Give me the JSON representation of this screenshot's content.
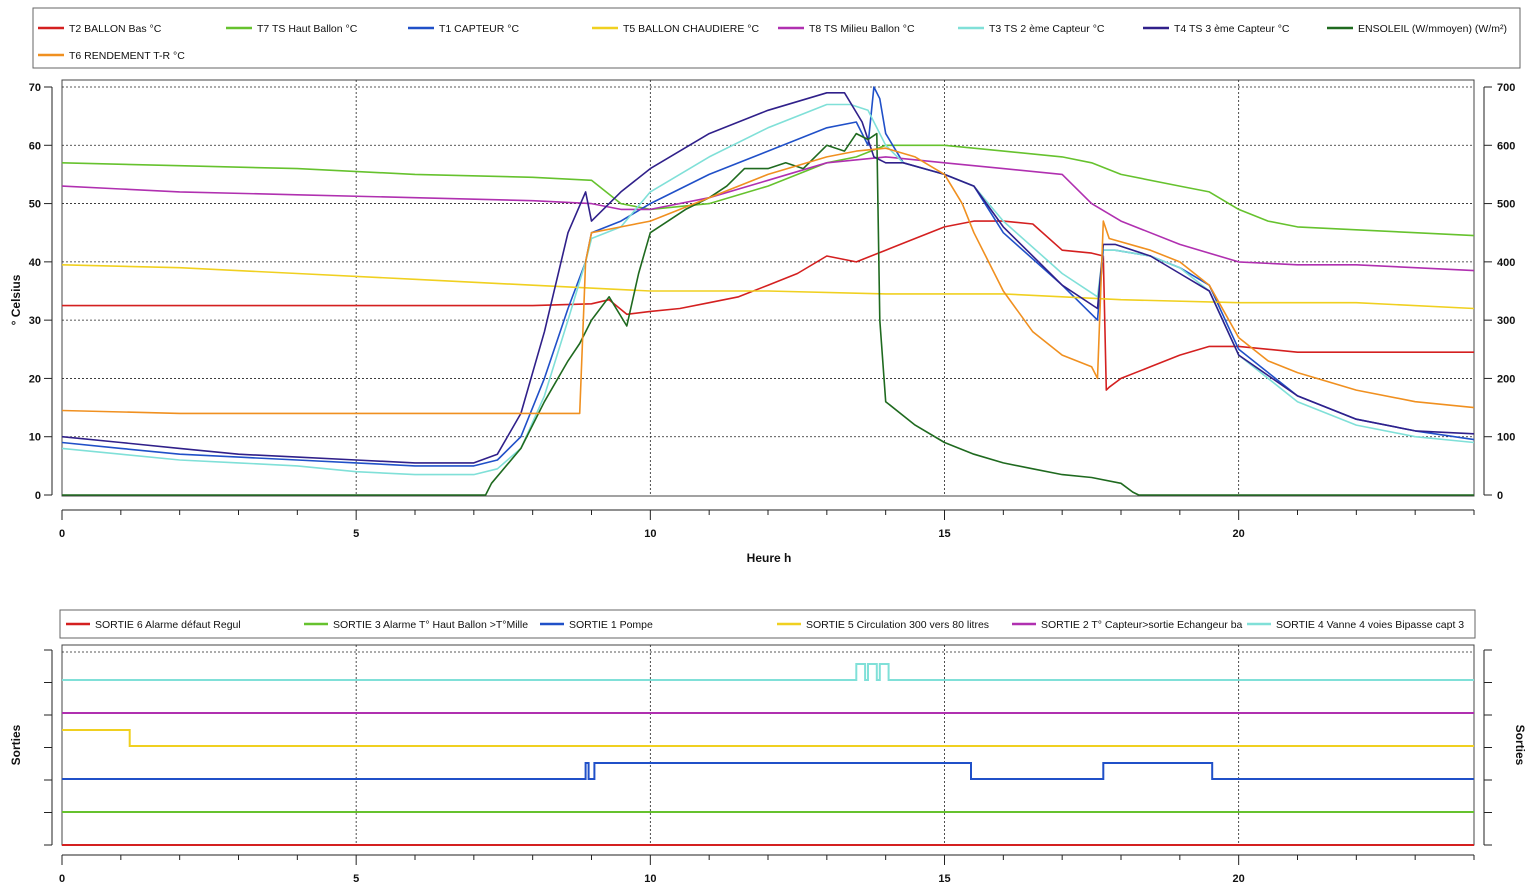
{
  "chart_data": [
    {
      "type": "line",
      "xlabel": "Heure h",
      "ylabel": "° Celsius",
      "xlim": [
        0,
        24
      ],
      "ylim": [
        0,
        70
      ],
      "y2lim": [
        0,
        700
      ],
      "xticks": [
        0,
        5,
        10,
        15,
        20
      ],
      "yticks": [
        0,
        10,
        20,
        30,
        40,
        50,
        60,
        70
      ],
      "y2ticks": [
        0,
        100,
        200,
        300,
        400,
        500,
        600,
        700
      ],
      "grid": true,
      "legend_position": "top",
      "series": [
        {
          "name": "T2 BALLON  Bas °C",
          "color": "#d42020",
          "x": [
            0,
            1,
            2,
            3,
            4,
            5,
            6,
            7,
            8,
            9,
            9.3,
            9.6,
            10,
            10.5,
            11,
            11.5,
            12,
            12.5,
            13,
            13.5,
            14,
            14.5,
            15,
            15.5,
            16,
            16.5,
            17,
            17.5,
            17.7,
            17.75,
            17.8,
            18,
            18.5,
            19,
            19.5,
            20,
            21,
            22,
            23,
            24
          ],
          "y": [
            32.5,
            32.5,
            32.5,
            32.5,
            32.5,
            32.5,
            32.5,
            32.5,
            32.5,
            32.8,
            33.5,
            31,
            31.5,
            32,
            33,
            34,
            36,
            38,
            41,
            40,
            42,
            44,
            46,
            47,
            47,
            46.5,
            42,
            41.5,
            41,
            18,
            18.5,
            20,
            22,
            24,
            25.5,
            25.5,
            24.5,
            24.5,
            24.5,
            24.5
          ]
        },
        {
          "name": "T7 TS  Haut Ballon °C",
          "color": "#66c22e",
          "x": [
            0,
            2,
            4,
            6,
            8,
            9,
            9.5,
            10,
            11,
            12,
            13,
            13.5,
            14,
            15,
            16,
            17,
            17.5,
            18,
            19,
            19.5,
            20,
            20.5,
            21,
            22,
            23,
            24
          ],
          "y": [
            57,
            56.5,
            56,
            55,
            54.5,
            54,
            50,
            49,
            50,
            53,
            57,
            58,
            60,
            60,
            59,
            58,
            57,
            55,
            53,
            52,
            49,
            47,
            46,
            45.5,
            45,
            44.5
          ]
        },
        {
          "name": "T1 CAPTEUR °C",
          "color": "#2050c8",
          "x": [
            0,
            1,
            2,
            3,
            4,
            5,
            6,
            7,
            7.4,
            7.8,
            8.2,
            8.6,
            8.9,
            9,
            9.5,
            10,
            11,
            12,
            13,
            13.5,
            13.7,
            13.8,
            13.9,
            14,
            14.3,
            15,
            15.5,
            16,
            17,
            17.6,
            17.7,
            17.9,
            18.5,
            19,
            19.5,
            20,
            21,
            22,
            23,
            24
          ],
          "y": [
            9,
            8,
            7,
            6.5,
            6,
            5.5,
            5,
            5,
            6,
            10,
            20,
            32,
            40,
            45,
            47,
            50,
            55,
            59,
            63,
            64,
            60,
            70,
            68,
            62,
            57,
            55,
            53,
            45,
            36,
            30,
            42,
            42,
            41,
            39,
            36,
            25,
            17,
            13,
            11,
            9.5
          ]
        },
        {
          "name": "T5 BALLON CHAUDIERE °C",
          "color": "#f0d020",
          "x": [
            0,
            2,
            4,
            6,
            8,
            10,
            12,
            14,
            16,
            18,
            20,
            22,
            24
          ],
          "y": [
            39.5,
            39,
            38,
            37,
            36,
            35,
            35,
            34.5,
            34.5,
            33.5,
            33,
            33,
            32
          ]
        },
        {
          "name": "T8 TS  Milieu Ballon °C",
          "color": "#b030b0",
          "x": [
            0,
            1,
            2,
            4,
            6,
            8,
            9,
            9.5,
            10,
            11,
            12,
            13,
            14,
            15,
            16,
            17,
            17.5,
            18,
            19,
            20,
            21,
            22,
            23,
            24
          ],
          "y": [
            53,
            52.5,
            52,
            51.5,
            51,
            50.5,
            50,
            49,
            49,
            51,
            54,
            57,
            58,
            57,
            56,
            55,
            50,
            47,
            43,
            40,
            39.5,
            39.5,
            39,
            38.5
          ]
        },
        {
          "name": "T3 TS  2 ème Capteur °C",
          "color": "#80e0d8",
          "x": [
            0,
            1,
            2,
            3,
            4,
            5,
            6,
            7,
            7.4,
            7.8,
            8.2,
            8.6,
            8.9,
            9,
            9.5,
            10,
            11,
            12,
            13,
            13.4,
            13.7,
            14,
            14.3,
            15,
            15.5,
            16,
            17,
            17.6,
            17.7,
            17.9,
            18.5,
            19,
            19.5,
            20,
            21,
            22,
            23,
            24
          ],
          "y": [
            8,
            7,
            6,
            5.5,
            5,
            4,
            3.5,
            3.5,
            4.5,
            8,
            17,
            30,
            40,
            44,
            46,
            52,
            58,
            63,
            67,
            67,
            66,
            60,
            57,
            55,
            53,
            47,
            38,
            34,
            42,
            42,
            41,
            39,
            35,
            24,
            16,
            12,
            10,
            9
          ]
        },
        {
          "name": "T4 TS  3 ème Capteur °C",
          "color": "#30208a",
          "x": [
            0,
            1,
            2,
            3,
            4,
            5,
            6,
            7,
            7.4,
            7.8,
            8.2,
            8.6,
            8.9,
            9,
            9.5,
            10,
            11,
            12,
            13,
            13.3,
            13.6,
            13.8,
            14,
            14.3,
            15,
            15.5,
            16,
            17,
            17.6,
            17.7,
            17.9,
            18.5,
            19,
            19.5,
            20,
            21,
            22,
            23,
            24
          ],
          "y": [
            10,
            9,
            8,
            7,
            6.5,
            6,
            5.5,
            5.5,
            7,
            14,
            28,
            45,
            52,
            47,
            52,
            56,
            62,
            66,
            69,
            69,
            64,
            58,
            57,
            57,
            55,
            53,
            46,
            36,
            32,
            43,
            43,
            41,
            38,
            35,
            24,
            17,
            13,
            11,
            10.5
          ]
        },
        {
          "name": "ENSOLEIL (W/mmoyen) (W/m²)",
          "color": "#1f6a1f",
          "axis": "right",
          "x": [
            0,
            2,
            4,
            6,
            7.2,
            7.3,
            7.8,
            8.2,
            8.6,
            8.8,
            9,
            9.3,
            9.6,
            9.8,
            10,
            10.3,
            10.6,
            11,
            11.3,
            11.6,
            12,
            12.3,
            12.6,
            13,
            13.3,
            13.5,
            13.7,
            13.85,
            13.9,
            14,
            14.5,
            15,
            15.5,
            16,
            16.5,
            17,
            17.5,
            18,
            18.2,
            18.3,
            19,
            20,
            22,
            24
          ],
          "y": [
            0,
            0,
            0,
            0,
            0,
            20,
            80,
            160,
            230,
            260,
            300,
            340,
            290,
            380,
            450,
            470,
            490,
            510,
            530,
            560,
            560,
            570,
            560,
            600,
            590,
            620,
            610,
            620,
            300,
            160,
            120,
            90,
            70,
            55,
            45,
            35,
            30,
            20,
            5,
            0,
            0,
            0,
            0,
            0
          ]
        },
        {
          "name": "T6 RENDEMENT  T-R °C",
          "color": "#f09020",
          "x": [
            0,
            2,
            4,
            6,
            7,
            8,
            8.8,
            8.9,
            9,
            9.5,
            10,
            11,
            12,
            13,
            13.5,
            14,
            14.5,
            15,
            15.3,
            15.5,
            16,
            16.5,
            17,
            17.5,
            17.6,
            17.7,
            17.8,
            18.5,
            19,
            19.5,
            20,
            20.5,
            21,
            22,
            23,
            24
          ],
          "y": [
            14.5,
            14,
            14,
            14,
            14,
            14,
            14,
            40,
            45,
            46,
            47,
            51,
            55,
            58,
            59,
            59.5,
            58,
            55,
            50,
            45,
            35,
            28,
            24,
            22,
            20,
            47,
            44,
            42,
            40,
            36,
            27,
            23,
            21,
            18,
            16,
            15
          ]
        }
      ]
    },
    {
      "type": "line",
      "ylabel": "Sorties",
      "y2label": "Sorties",
      "xlim": [
        0,
        24
      ],
      "xticks": [
        0,
        5,
        10,
        15,
        20
      ],
      "grid": true,
      "legend_position": "top",
      "series": [
        {
          "name": "SORTIE 6  Alarme défaut  Regul",
          "color": "#d42020",
          "base": 0,
          "x": [
            0,
            24
          ],
          "state": [
            0,
            0
          ]
        },
        {
          "name": "SORTIE 3  Alarme T° Haut Ballon >T°Mille",
          "color": "#66c22e",
          "base": 1,
          "x": [
            0,
            24
          ],
          "state": [
            0,
            0
          ]
        },
        {
          "name": "SORTIE 1  Pompe",
          "color": "#2050c8",
          "base": 2,
          "x": [
            0,
            8.9,
            8.9,
            8.95,
            8.95,
            9.05,
            9.05,
            15.45,
            15.45,
            17.7,
            17.7,
            19.55,
            19.55,
            24
          ],
          "state": [
            0,
            0,
            1,
            1,
            0,
            0,
            1,
            1,
            0,
            0,
            1,
            1,
            0,
            0
          ]
        },
        {
          "name": "SORTIE 5  Circulation 300 vers 80 litres",
          "color": "#f0d020",
          "base": 3,
          "x": [
            0,
            1.15,
            1.15,
            24
          ],
          "state": [
            1,
            1,
            0,
            0
          ]
        },
        {
          "name": "SORTIE 2  T° Capteur>sortie Echangeur ba",
          "color": "#b030b0",
          "base": 4,
          "x": [
            0,
            24
          ],
          "state": [
            0,
            0
          ]
        },
        {
          "name": "SORTIE 4  Vanne 4 voies Bipasse capt 3",
          "color": "#80e0d8",
          "base": 5,
          "x": [
            0,
            13.5,
            13.5,
            13.65,
            13.65,
            13.7,
            13.7,
            13.85,
            13.85,
            13.9,
            13.9,
            14.05,
            14.05,
            24
          ],
          "state": [
            0,
            0,
            1,
            1,
            0,
            0,
            1,
            1,
            0,
            0,
            1,
            1,
            0,
            0
          ]
        }
      ]
    }
  ]
}
